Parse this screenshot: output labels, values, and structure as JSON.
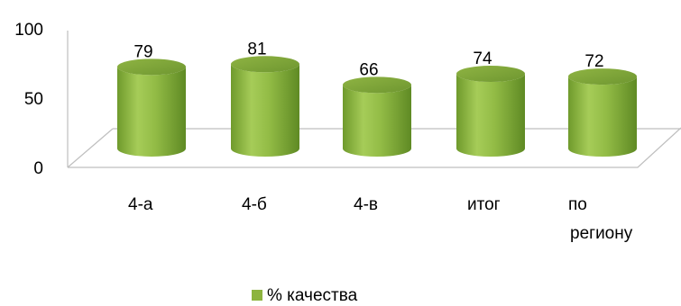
{
  "chart_data": {
    "type": "bar",
    "style": "3d-cylinder",
    "categories": [
      "4-а",
      "4-б",
      "4-в",
      "итог",
      "по региону"
    ],
    "series": [
      {
        "name": "% качества",
        "values": [
          79,
          81,
          66,
          74,
          72
        ],
        "color": "#8db43e"
      }
    ],
    "data_labels": [
      "79",
      "81",
      "66",
      "74",
      "72"
    ],
    "ylim": [
      0,
      100
    ],
    "yticks": [
      "0",
      "50",
      "100"
    ],
    "grid": false,
    "legend": "bottom"
  }
}
